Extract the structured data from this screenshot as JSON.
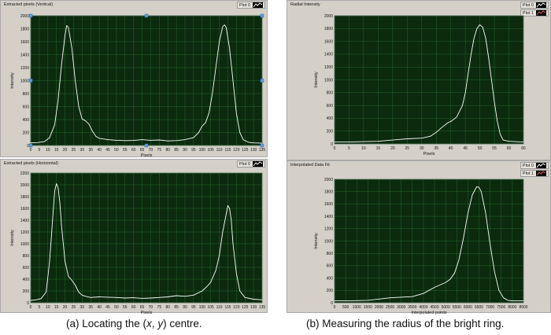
{
  "captions": {
    "left": {
      "prefix": "(a)  Locating the (",
      "x": "x",
      "sep": ", ",
      "y": "y",
      "suffix": ") centre."
    },
    "right": "(b)  Measuring the radius of the bright ring."
  },
  "panels": [
    {
      "id": "vertical",
      "title": "Extracted pixels (Vertical)",
      "legend": [
        "Plot 0"
      ],
      "handles": true,
      "xlabel": "Pixels",
      "ylabel": "Intensity",
      "xmin": 0,
      "xmax": 135,
      "ymin": 0,
      "ymax": 2000,
      "xticks": [
        0,
        5,
        10,
        15,
        20,
        25,
        30,
        35,
        40,
        45,
        50,
        55,
        60,
        65,
        70,
        75,
        80,
        85,
        90,
        95,
        100,
        105,
        110,
        115,
        120,
        125,
        130,
        135
      ],
      "yticks": [
        0,
        200,
        400,
        600,
        800,
        1000,
        1200,
        1400,
        1600,
        1800,
        2000
      ],
      "x": [
        0,
        4,
        8,
        11,
        14,
        16,
        18,
        20,
        21,
        22,
        24,
        26,
        28,
        30,
        32,
        34,
        36,
        38,
        40,
        45,
        50,
        55,
        60,
        65,
        70,
        75,
        80,
        85,
        90,
        95,
        98,
        100,
        102,
        104,
        106,
        108,
        110,
        112,
        113,
        114,
        116,
        118,
        120,
        122,
        124,
        127,
        130,
        135
      ],
      "y": [
        40,
        45,
        60,
        120,
        320,
        700,
        1250,
        1700,
        1850,
        1820,
        1500,
        1000,
        600,
        410,
        380,
        330,
        220,
        140,
        110,
        90,
        80,
        75,
        78,
        90,
        80,
        85,
        70,
        75,
        90,
        120,
        200,
        300,
        350,
        500,
        800,
        1200,
        1600,
        1830,
        1860,
        1820,
        1500,
        1000,
        500,
        200,
        90,
        50,
        40,
        35
      ]
    },
    {
      "id": "horizontal",
      "title": "Extracted pixels (Horizontal)",
      "legend": [
        "Plot 0"
      ],
      "handles": false,
      "xlabel": "Pixels",
      "ylabel": "Intensity",
      "xmin": 0,
      "xmax": 135,
      "ymin": 0,
      "ymax": 2200,
      "xticks": [
        0,
        5,
        10,
        15,
        20,
        25,
        30,
        35,
        40,
        45,
        50,
        55,
        60,
        65,
        70,
        75,
        80,
        85,
        90,
        95,
        100,
        105,
        110,
        115,
        120,
        125,
        130,
        135
      ],
      "yticks": [
        0,
        200,
        400,
        600,
        800,
        1000,
        1200,
        1400,
        1600,
        1800,
        2000,
        2200
      ],
      "x": [
        0,
        3,
        6,
        9,
        11,
        13,
        14,
        15,
        16,
        17,
        18,
        20,
        22,
        24,
        26,
        28,
        30,
        32,
        35,
        40,
        45,
        50,
        55,
        60,
        65,
        70,
        75,
        80,
        85,
        90,
        95,
        100,
        103,
        105,
        108,
        110,
        112,
        114,
        115,
        116,
        117,
        118,
        120,
        122,
        125,
        130,
        135
      ],
      "y": [
        40,
        50,
        70,
        180,
        700,
        1500,
        1900,
        2020,
        1950,
        1700,
        1300,
        700,
        450,
        380,
        300,
        180,
        130,
        110,
        90,
        100,
        95,
        90,
        80,
        85,
        75,
        80,
        90,
        100,
        120,
        110,
        130,
        200,
        280,
        350,
        550,
        800,
        1200,
        1500,
        1650,
        1600,
        1400,
        1000,
        500,
        200,
        90,
        60,
        50
      ]
    },
    {
      "id": "radial",
      "title": "Radial Intensity",
      "legend": [
        "Plot 0",
        "Plot 1"
      ],
      "handles": false,
      "xlabel": "Pixels",
      "ylabel": "Intensity",
      "xmin": 0,
      "xmax": 65,
      "ymin": 0,
      "ymax": 2000,
      "xticks": [
        0,
        5,
        10,
        15,
        20,
        25,
        30,
        35,
        40,
        45,
        50,
        55,
        60,
        65
      ],
      "yticks": [
        0,
        200,
        400,
        600,
        800,
        1000,
        1200,
        1400,
        1600,
        1800,
        2000
      ],
      "x": [
        0,
        5,
        10,
        15,
        20,
        25,
        30,
        33,
        35,
        37,
        39,
        40,
        42,
        44,
        45,
        46,
        47,
        48,
        49,
        50,
        51,
        52,
        53,
        54,
        55,
        56,
        57,
        58,
        60,
        62,
        65
      ],
      "y": [
        30,
        30,
        35,
        40,
        60,
        80,
        90,
        120,
        180,
        260,
        330,
        350,
        420,
        600,
        800,
        1100,
        1400,
        1650,
        1800,
        1860,
        1820,
        1650,
        1350,
        1000,
        650,
        350,
        150,
        60,
        40,
        35,
        30
      ]
    },
    {
      "id": "fit",
      "title": "Interpolated Data Fit",
      "legend": [
        "Plot 0",
        "Plot 1"
      ],
      "handles": false,
      "xlabel": "Interpolated points",
      "ylabel": "Intensity",
      "xmin": 0,
      "xmax": 8500,
      "ymin": 0,
      "ymax": 2000,
      "xticks": [
        0,
        500,
        1000,
        1500,
        2000,
        2500,
        3000,
        3500,
        4000,
        4500,
        5000,
        5500,
        6000,
        6500,
        7000,
        7500,
        8000,
        8500
      ],
      "yticks": [
        0,
        200,
        400,
        600,
        800,
        1000,
        1200,
        1400,
        1600,
        1800,
        2000
      ],
      "x": [
        0,
        500,
        1000,
        1500,
        2000,
        2500,
        3000,
        3500,
        4000,
        4500,
        5000,
        5200,
        5400,
        5600,
        5800,
        6000,
        6200,
        6400,
        6500,
        6600,
        6800,
        7000,
        7200,
        7400,
        7600,
        7800,
        8000,
        8500
      ],
      "y": [
        30,
        30,
        35,
        40,
        60,
        80,
        90,
        100,
        150,
        250,
        330,
        380,
        480,
        700,
        1050,
        1450,
        1750,
        1880,
        1870,
        1800,
        1450,
        950,
        500,
        200,
        80,
        40,
        30,
        30
      ]
    }
  ]
}
